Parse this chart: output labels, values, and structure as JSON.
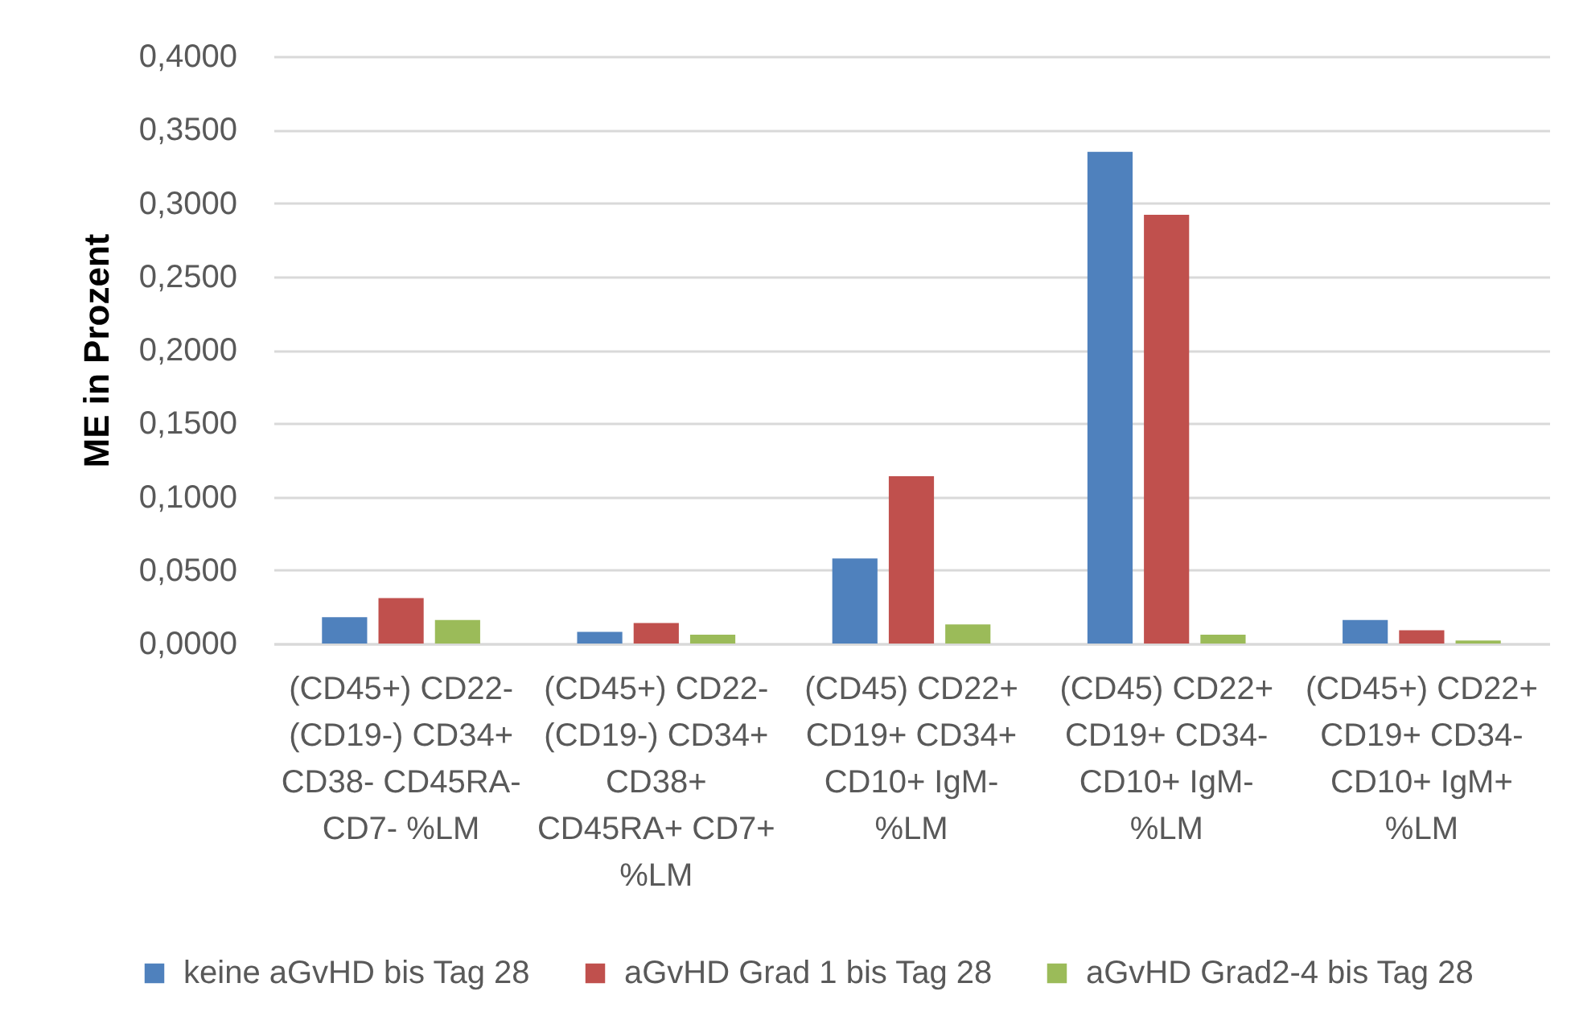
{
  "chart_data": {
    "type": "bar",
    "ylabel": "ME in Prozent",
    "categories": [
      "(CD45+) CD22- (CD19-) CD34+ CD38- CD45RA- CD7- %LM",
      "(CD45+) CD22- (CD19-) CD34+ CD38+ CD45RA+ CD7+ %LM",
      "(CD45) CD22+ CD19+ CD34+ CD10+ IgM- %LM",
      "(CD45) CD22+ CD19+ CD34- CD10+ IgM- %LM",
      "(CD45+) CD22+ CD19+ CD34- CD10+ IgM+ %LM"
    ],
    "series": [
      {
        "name": "keine aGvHD bis Tag 28",
        "color": "#4f81bd",
        "values": [
          0.018,
          0.008,
          0.058,
          0.335,
          0.016
        ]
      },
      {
        "name": "aGvHD Grad 1 bis Tag 28",
        "color": "#c0504d",
        "values": [
          0.031,
          0.014,
          0.114,
          0.292,
          0.009
        ]
      },
      {
        "name": "aGvHD Grad2-4 bis Tag 28",
        "color": "#9bbb59",
        "values": [
          0.016,
          0.006,
          0.013,
          0.006,
          0.002
        ]
      }
    ],
    "ylim": [
      0,
      0.4
    ],
    "yticks": [
      {
        "value": 0,
        "label": "0,0000"
      },
      {
        "value": 0.05,
        "label": "0,0500"
      },
      {
        "value": 0.1,
        "label": "0,1000"
      },
      {
        "value": 0.15,
        "label": "0,1500"
      },
      {
        "value": 0.2,
        "label": "0,2000"
      },
      {
        "value": 0.25,
        "label": "0,2500"
      },
      {
        "value": 0.3,
        "label": "0,3000"
      },
      {
        "value": 0.35,
        "label": "0,3500"
      },
      {
        "value": 0.4,
        "label": "0,4000"
      }
    ],
    "grid": "y",
    "legend": "bottom"
  }
}
